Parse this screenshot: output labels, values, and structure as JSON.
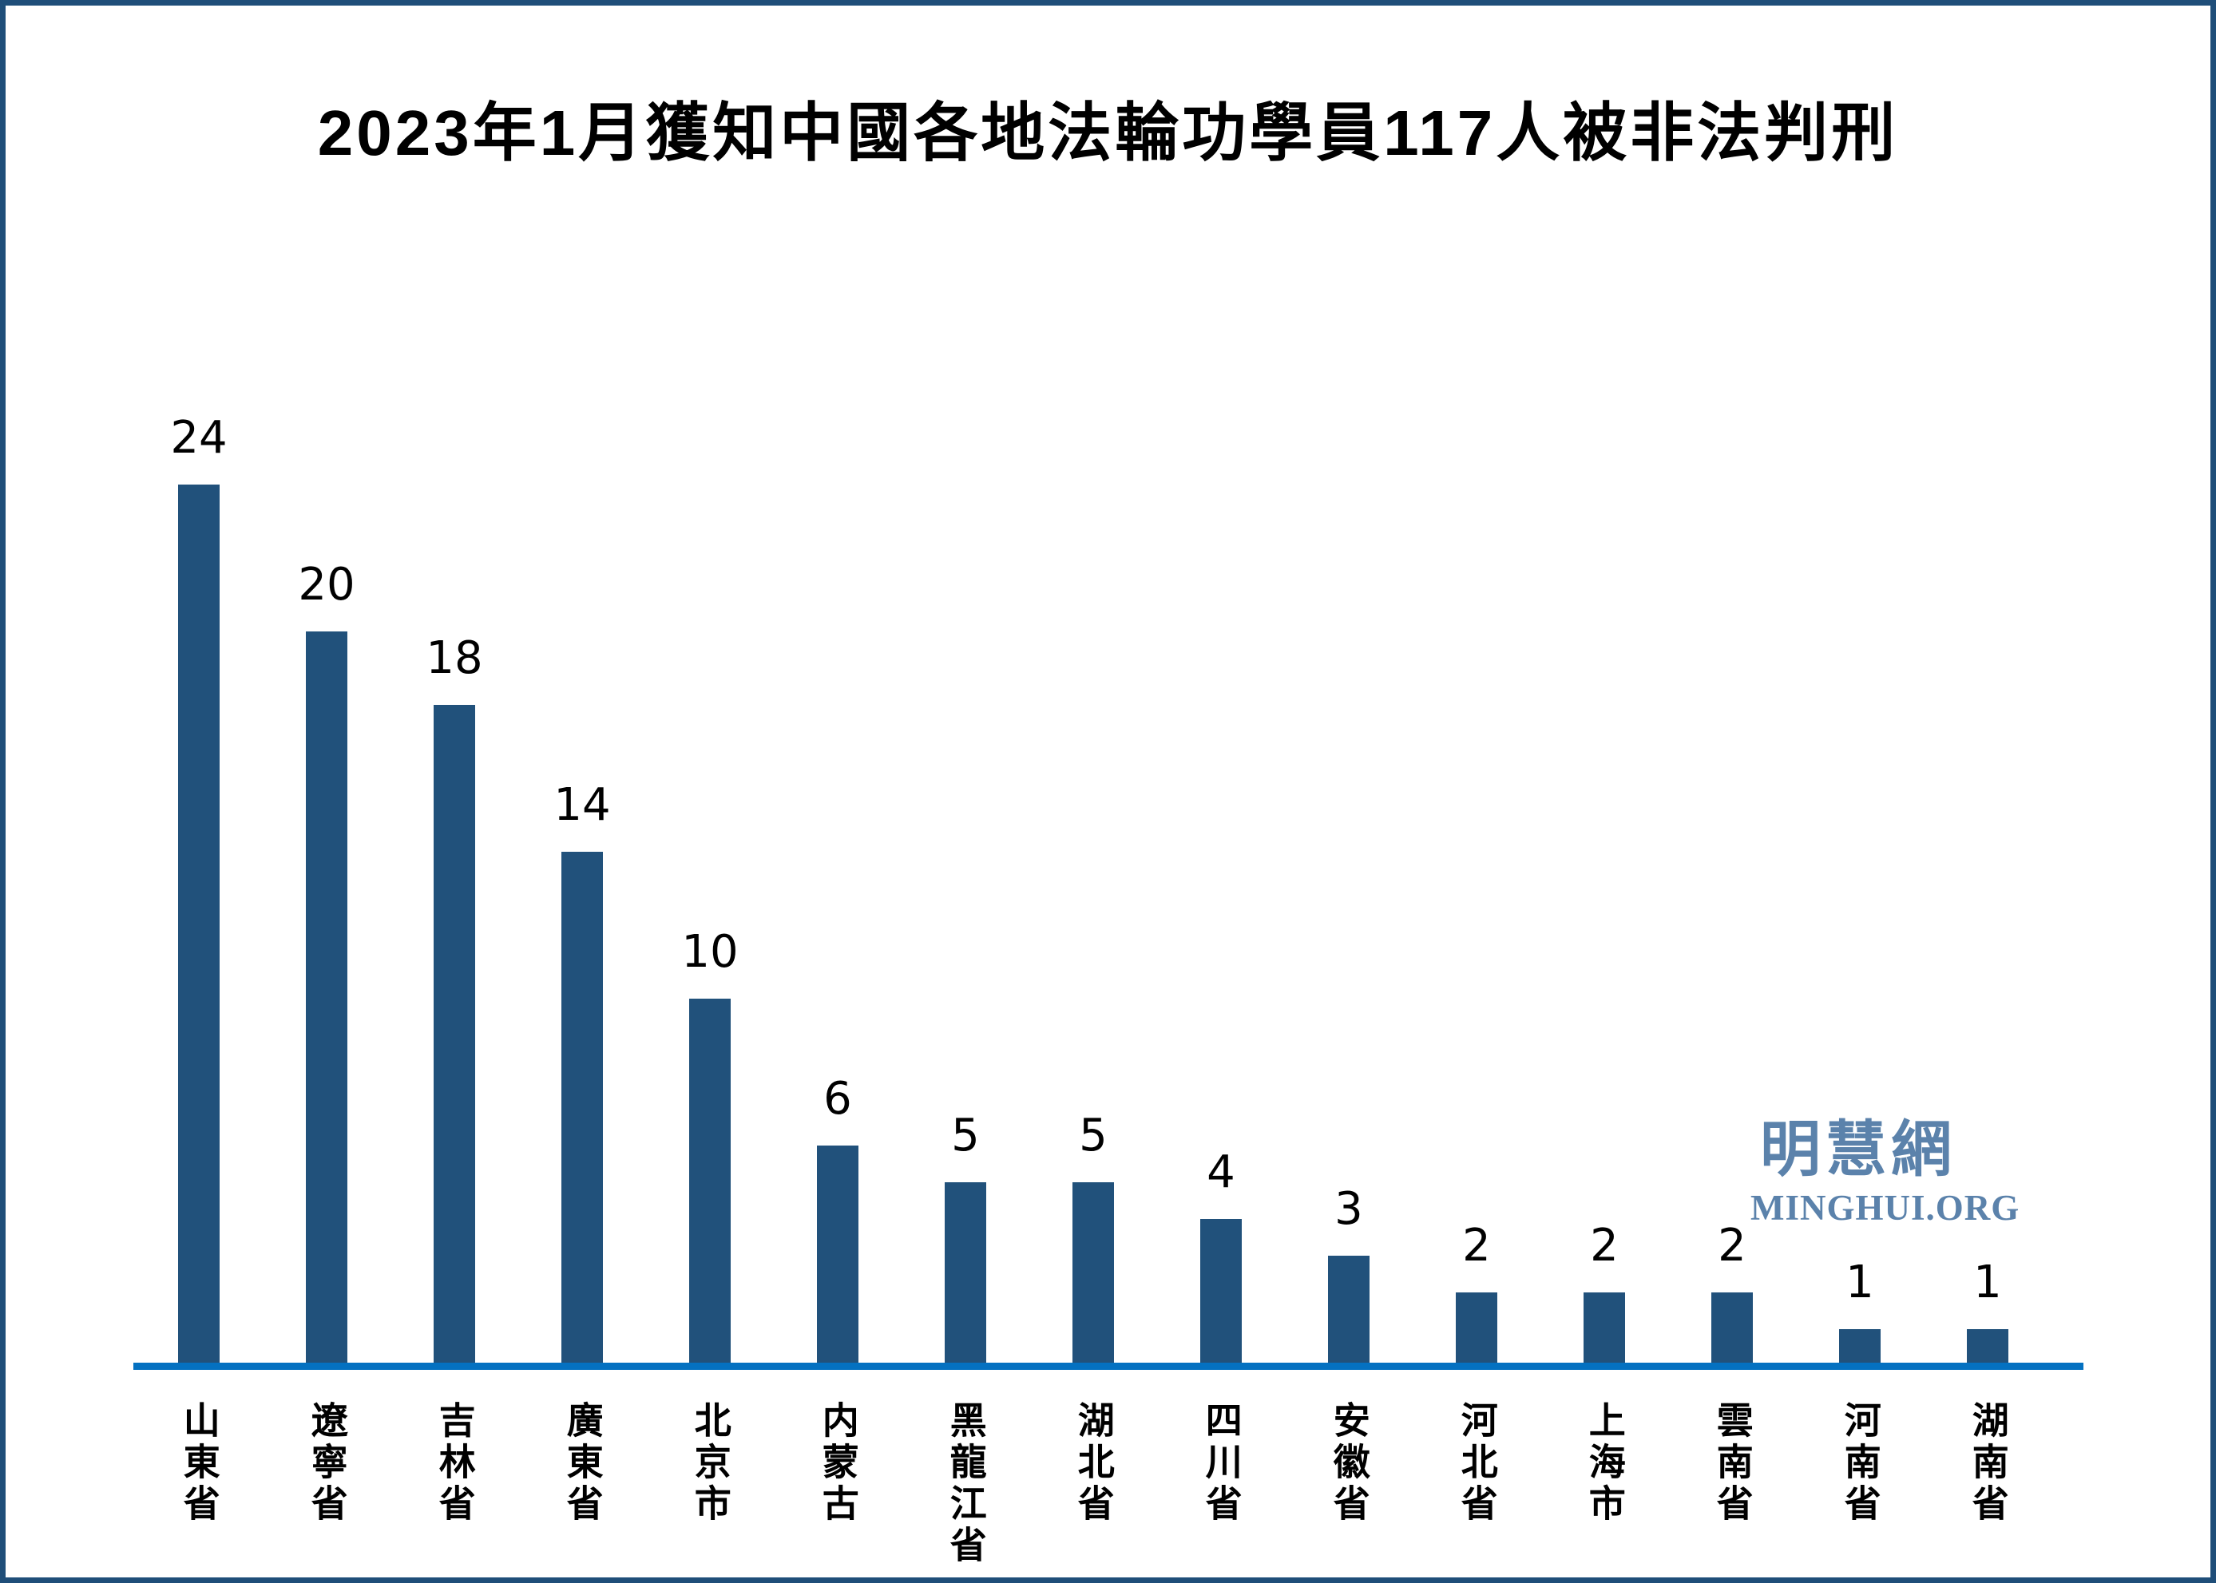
{
  "page": {
    "border_color": "#1F4E79",
    "background": "#FFFFFF"
  },
  "title": "2023年1月獲知中國各地法輪功學員117人被非法判刑",
  "watermark": {
    "cjk": "明慧網",
    "latin": "MINGHUI.ORG",
    "color": "#5B82AB"
  },
  "chart_data": {
    "type": "bar",
    "title": "2023年1月獲知中國各地法輪功學員117人被非法判刑",
    "categories": [
      "山東省",
      "遼寧省",
      "吉林省",
      "廣東省",
      "北京市",
      "内蒙古",
      "黑龍江省",
      "湖北省",
      "四川省",
      "安徽省",
      "河北省",
      "上海市",
      "雲南省",
      "河南省",
      "湖南省"
    ],
    "values": [
      24,
      20,
      18,
      14,
      10,
      6,
      5,
      5,
      4,
      3,
      2,
      2,
      2,
      1,
      1
    ],
    "total": 117,
    "xlabel": "",
    "ylabel": "",
    "ylim": [
      0,
      24
    ],
    "bar_color": "#21517B",
    "axis_color": "#0471C1",
    "value_labels_shown": true,
    "grid": false,
    "legend_position": "none",
    "x_label_orientation": "vertical"
  }
}
